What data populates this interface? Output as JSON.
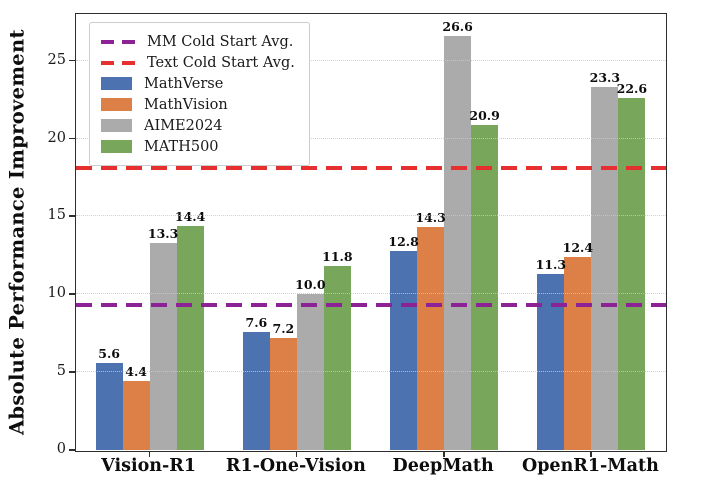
{
  "chart_data": {
    "type": "bar",
    "title": "",
    "xlabel": "",
    "ylabel": "Absolute Performance Improvement",
    "ylim": [
      0,
      28
    ],
    "yticks": [
      0,
      5,
      10,
      15,
      20,
      25
    ],
    "grid": "horizontal-dotted",
    "legend_position": "upper-left",
    "categories": [
      "Vision-R1",
      "R1-One-Vision",
      "DeepMath",
      "OpenR1-Math"
    ],
    "series": [
      {
        "name": "MathVerse",
        "color": "#4C72B0",
        "values": [
          5.6,
          7.6,
          12.8,
          11.3
        ]
      },
      {
        "name": "MathVision",
        "color": "#DD8047",
        "values": [
          4.4,
          7.2,
          14.3,
          12.4
        ]
      },
      {
        "name": "AIME2024",
        "color": "#ABABAB",
        "values": [
          13.3,
          10.0,
          26.6,
          23.3
        ]
      },
      {
        "name": "MATH500",
        "color": "#78A75C",
        "values": [
          14.4,
          11.8,
          20.9,
          22.6
        ]
      }
    ],
    "reference_lines": [
      {
        "name": "MM Cold Start Avg.",
        "color": "#8C2296",
        "value": 9.3
      },
      {
        "name": "Text Cold Start Avg.",
        "color": "#E63030",
        "value": 18.1
      }
    ],
    "colors": {
      "frame": "#2e2e2e",
      "gridline": "#c9c9c9",
      "background": "#ffffff"
    }
  }
}
